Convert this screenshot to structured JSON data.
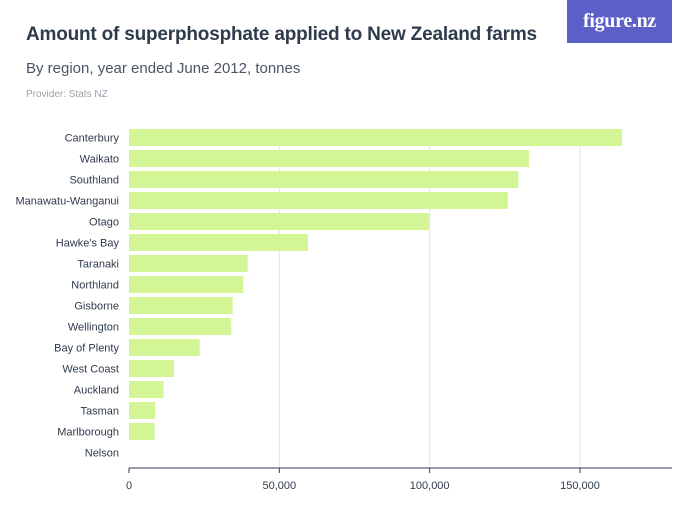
{
  "header": {
    "title": "Amount of superphosphate applied to New Zealand farms",
    "subtitle": "By region, year ended June 2012, tonnes",
    "provider": "Provider: Stats NZ",
    "logo_text": "figure.nz"
  },
  "colors": {
    "bar": "#d4f595",
    "grid": "#e3e3e3",
    "axis": "#2f3b4d",
    "logo_bg": "#5b5fc7"
  },
  "chart_data": {
    "type": "bar",
    "orientation": "horizontal",
    "title": "Amount of superphosphate applied to New Zealand farms",
    "subtitle": "By region, year ended June 2012, tonnes",
    "xlabel": "",
    "ylabel": "",
    "xlim": [
      0,
      180000
    ],
    "xticks": [
      0,
      50000,
      100000,
      150000
    ],
    "xtick_labels": [
      "0",
      "50,000",
      "100,000",
      "150,000"
    ],
    "grid": true,
    "categories": [
      "Canterbury",
      "Waikato",
      "Southland",
      "Manawatu-Wanganui",
      "Otago",
      "Hawke's Bay",
      "Taranaki",
      "Northland",
      "Gisborne",
      "Wellington",
      "Bay of Plenty",
      "West Coast",
      "Auckland",
      "Tasman",
      "Marlborough",
      "Nelson"
    ],
    "values": [
      164000,
      133000,
      129500,
      126000,
      99700,
      59500,
      39500,
      38000,
      34500,
      34000,
      23500,
      15000,
      11500,
      8700,
      8500,
      0
    ]
  }
}
